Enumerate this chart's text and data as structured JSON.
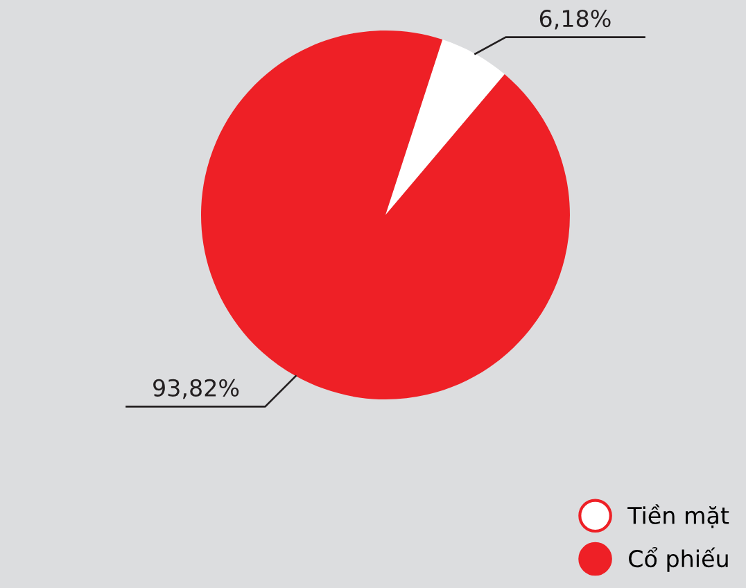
{
  "chart_data": {
    "type": "pie",
    "categories": [
      "Tiền mặt",
      "Cổ phiếu"
    ],
    "values": [
      6.18,
      93.82
    ],
    "colors": [
      "#ffffff",
      "#ee2026"
    ],
    "value_labels": [
      "6,18%",
      "93,82%"
    ],
    "legend": "bottom right"
  }
}
